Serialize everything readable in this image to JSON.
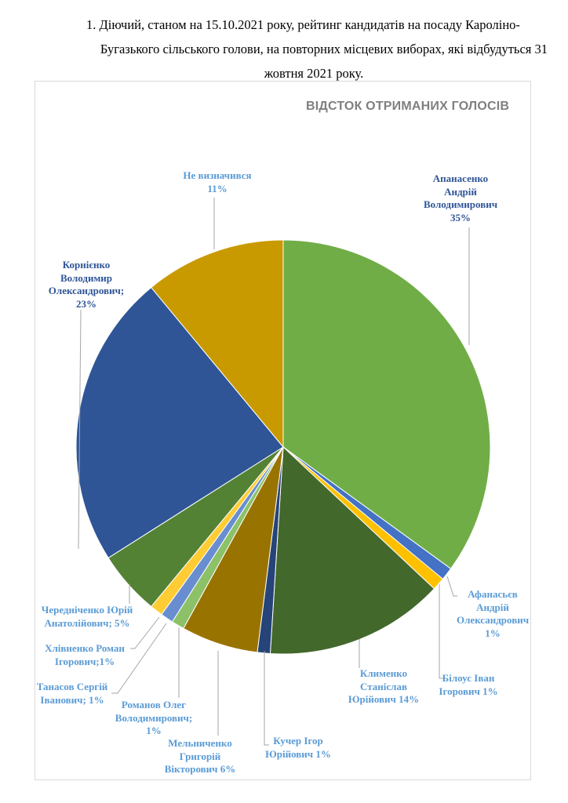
{
  "document": {
    "heading_line1": "1.  Діючий, станом на 15.10.2021 року, рейтинг кандидатів на посаду Кароліно-",
    "heading_line2": "Бугазького сільського голови, на повторних місцевих виборах, які відбудуться 31",
    "heading_line3": "жовтня 2021 року."
  },
  "chart_data": {
    "type": "pie",
    "title": "ВІДСТОК ОТРИМАНИХ ГОЛОСІВ",
    "unit": "%",
    "slices": [
      {
        "name": "Апанасенко Андрій Володимирович",
        "value": 35,
        "label": "Апанасенко\nАндрій\nВолодимирович\n35%",
        "color": "#70ad47"
      },
      {
        "name": "Афанасьєв Андрій Олександрович",
        "value": 1,
        "label": "Афанасьєв\nАндрій\nОлександрович\n1%",
        "color": "#4472c4"
      },
      {
        "name": "Білоус Іван Ігорович",
        "value": 1,
        "label": "Білоус Іван\nІгорович 1%",
        "color": "#ffc000"
      },
      {
        "name": "Клименко Станіслав Юрійович",
        "value": 14,
        "label": "Клименко\nСтаніслав\nЮрійович 14%",
        "color": "#43682b"
      },
      {
        "name": "Кучер Ігор Юрійович",
        "value": 1,
        "label": "Кучер Ігор\nЮрійович 1%",
        "color": "#264478"
      },
      {
        "name": "Мельниченко Григорій Вікторович",
        "value": 6,
        "label": "Мельниченко\nГригорій\nВікторович 6%",
        "color": "#997300"
      },
      {
        "name": "Романов Олег Володимирович",
        "value": 1,
        "label": "Романов Олег\nВолодимирович;\n1%",
        "color": "#8cc168"
      },
      {
        "name": "Танасов Сергій Іванович",
        "value": 1,
        "label": "Танасов Сергій\nІванович; 1%",
        "color": "#698ed0"
      },
      {
        "name": "Хлівненко Роман Ігорович",
        "value": 1,
        "label": "Хлівненко Роман\nІгорович;1%",
        "color": "#ffcd33"
      },
      {
        "name": "Чередніченко Юрій Анатолійович",
        "value": 5,
        "label": "Чередніченко Юрій\nАнатолійович; 5%",
        "color": "#548235"
      },
      {
        "name": "Корнієнко Володимир Олександрович",
        "value": 23,
        "label": "Корнієнко\nВолодимир\nОлександрович;\n23%",
        "color": "#2f5597"
      },
      {
        "name": "Не визначився",
        "value": 11,
        "label": "Не визначився\n11%",
        "color": "#c99a00"
      }
    ]
  }
}
